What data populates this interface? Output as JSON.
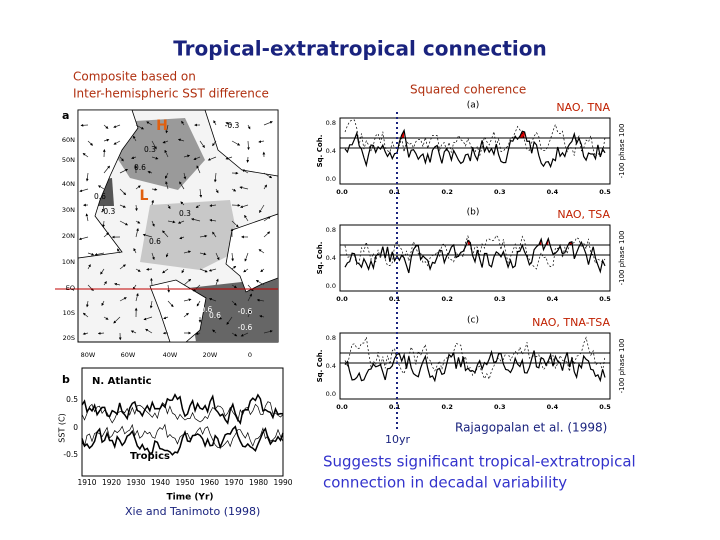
{
  "title": "Tropical-extratropical connection",
  "left": {
    "caption": [
      "Composite based on",
      "Inter-hemispheric SST difference"
    ],
    "map": {
      "panel": "a",
      "high": "H",
      "low": "L",
      "lat_labels": [
        "60N",
        "50N",
        "40N",
        "30N",
        "20N",
        "10N",
        "EQ",
        "10S",
        "20S"
      ],
      "lon_labels": [
        "80W",
        "60W",
        "40W",
        "20W",
        "0"
      ],
      "contour_labels": [
        "-0.3",
        "0.3",
        "0.6",
        "0.6",
        "-0.3",
        "0.6",
        "0.3",
        "-0.6",
        "-0.6",
        "-0.6",
        "0.6"
      ]
    },
    "timeseries": {
      "panel": "b",
      "series_labels": [
        "N. Atlantic",
        "Tropics"
      ],
      "y_label": "SST (C)",
      "yticks": [
        "0.5",
        "0",
        "-0.5"
      ],
      "x_label": "Time (Yr)",
      "xticks": [
        "1910",
        "1920",
        "1930",
        "1940",
        "1950",
        "1960",
        "1970",
        "1980",
        "1990"
      ]
    },
    "credit": "Xie and Tanimoto (1998)"
  },
  "right": {
    "heading": "Squared coherence",
    "panels": [
      {
        "label": "(a)",
        "pair": "NAO, TNA"
      },
      {
        "label": "(b)",
        "pair": "NAO, TSA"
      },
      {
        "label": "(c)",
        "pair": "NAO, TNA-TSA"
      }
    ],
    "y_label": "Sq. Coh.",
    "yticks": [
      "0.8",
      "0.4",
      "0.0"
    ],
    "y2_label": "-100 phase 100",
    "xticks": [
      "0.0",
      "0.1",
      "0.2",
      "0.3",
      "0.4",
      "0.5"
    ],
    "marker": "10yr",
    "credit": "Rajagopalan et al. (1998)"
  },
  "conclusion": [
    "Suggests significant tropical-extratropical",
    "connection in decadal variability"
  ]
}
